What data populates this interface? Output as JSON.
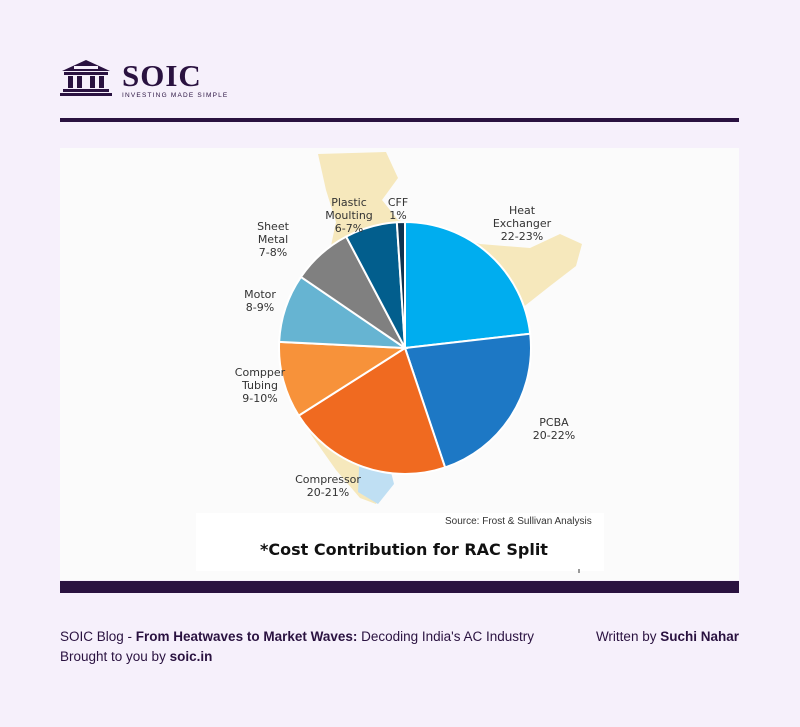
{
  "brand": {
    "name": "SOIC",
    "tagline": "INVESTING MADE SIMPLE",
    "colors": {
      "primary": "#2a1240",
      "background": "#f6f0fb"
    }
  },
  "chart_data": {
    "type": "pie",
    "title": "*Cost Contribution for RAC Split",
    "source": "Source: Frost & Sullivan Analysis",
    "slices": [
      {
        "name": "Heat Exchanger",
        "range": "22-23%",
        "value": 22.5,
        "color": "#00adef"
      },
      {
        "name": "PCBA",
        "range": "20-22%",
        "value": 21,
        "color": "#1d78c5"
      },
      {
        "name": "Compressor",
        "range": "20-21%",
        "value": 20.5,
        "color": "#f06a20"
      },
      {
        "name": "Compper Tubing",
        "range": "9-10%",
        "value": 9.5,
        "color": "#f7923a"
      },
      {
        "name": "Motor",
        "range": "8-9%",
        "value": 8.5,
        "color": "#66b4d2"
      },
      {
        "name": "Sheet Metal",
        "range": "7-8%",
        "value": 7.5,
        "color": "#808080"
      },
      {
        "name": "Plastic Moulting",
        "range": "6-7%",
        "value": 6.5,
        "color": "#025e8d"
      },
      {
        "name": "CFF",
        "range": "1%",
        "value": 1,
        "color": "#0f3350"
      }
    ]
  },
  "footer": {
    "blog_prefix": "SOIC Blog - ",
    "blog_title": "From Heatwaves to Market Waves:",
    "blog_subtitle": " Decoding India's AC Industry",
    "written_prefix": "Written by ",
    "author": "Suchi Nahar",
    "brought_prefix": "Brought to you by ",
    "site": "soic.in"
  }
}
